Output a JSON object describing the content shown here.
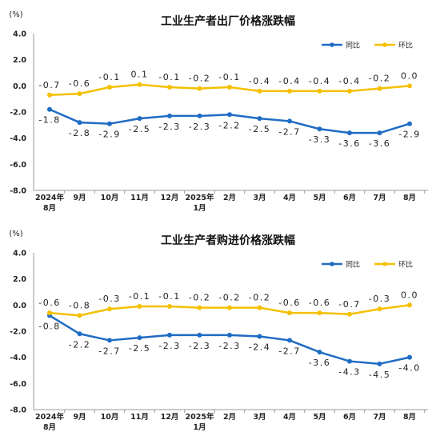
{
  "chart_data": [
    {
      "type": "line",
      "title": "工业生产者出厂价格涨跌幅",
      "unit": "(%)",
      "categories": [
        [
          "2024年",
          "8月"
        ],
        [
          "9月"
        ],
        [
          "10月"
        ],
        [
          "11月"
        ],
        [
          "12月"
        ],
        [
          "2025年",
          "1月"
        ],
        [
          "2月"
        ],
        [
          "3月"
        ],
        [
          "4月"
        ],
        [
          "5月"
        ],
        [
          "6月"
        ],
        [
          "7月"
        ],
        [
          "8月"
        ]
      ],
      "ylim": [
        -8.0,
        4.0
      ],
      "yticks": [
        "4.0",
        "2.0",
        "0.0",
        "-2.0",
        "-4.0",
        "-6.0",
        "-8.0"
      ],
      "legend_position": "top-right",
      "grid": false,
      "series": [
        {
          "name": "同比",
          "color": "#1f6cc4",
          "values": [
            -1.8,
            -2.8,
            -2.9,
            -2.5,
            -2.3,
            -2.3,
            -2.2,
            -2.5,
            -2.7,
            -3.3,
            -3.6,
            -3.6,
            -2.9
          ],
          "labels": [
            "-1.8",
            "-2.8",
            "-2.9",
            "-2.5",
            "-2.3",
            "-2.3",
            "-2.2",
            "-2.5",
            "-2.7",
            "-3.3",
            "-3.6",
            "-3.6",
            "-2.9"
          ]
        },
        {
          "name": "环比",
          "color": "#f5c000",
          "values": [
            -0.7,
            -0.6,
            -0.1,
            0.1,
            -0.1,
            -0.2,
            -0.1,
            -0.4,
            -0.4,
            -0.4,
            -0.4,
            -0.2,
            0.0
          ],
          "labels": [
            "-0.7",
            "-0.6",
            "-0.1",
            "0.1",
            "-0.1",
            "-0.2",
            "-0.1",
            "-0.4",
            "-0.4",
            "-0.4",
            "-0.4",
            "-0.2",
            "0.0"
          ]
        }
      ]
    },
    {
      "type": "line",
      "title": "工业生产者购进价格涨跌幅",
      "unit": "(%)",
      "categories": [
        [
          "2024年",
          "8月"
        ],
        [
          "9月"
        ],
        [
          "10月"
        ],
        [
          "11月"
        ],
        [
          "12月"
        ],
        [
          "2025年",
          "1月"
        ],
        [
          "2月"
        ],
        [
          "3月"
        ],
        [
          "4月"
        ],
        [
          "5月"
        ],
        [
          "6月"
        ],
        [
          "7月"
        ],
        [
          "8月"
        ]
      ],
      "ylim": [
        -8.0,
        4.0
      ],
      "yticks": [
        "4.0",
        "2.0",
        "0.0",
        "-2.0",
        "-4.0",
        "-6.0",
        "-8.0"
      ],
      "legend_position": "top-right",
      "grid": false,
      "series": [
        {
          "name": "同比",
          "color": "#1f6cc4",
          "values": [
            -0.8,
            -2.2,
            -2.7,
            -2.5,
            -2.3,
            -2.3,
            -2.3,
            -2.4,
            -2.7,
            -3.6,
            -4.3,
            -4.5,
            -4.0
          ],
          "labels": [
            "-0.8",
            "-2.2",
            "-2.7",
            "-2.5",
            "-2.3",
            "-2.3",
            "-2.3",
            "-2.4",
            "-2.7",
            "-3.6",
            "-4.3",
            "-4.5",
            "-4.0"
          ]
        },
        {
          "name": "环比",
          "color": "#f5c000",
          "values": [
            -0.6,
            -0.8,
            -0.3,
            -0.1,
            -0.1,
            -0.2,
            -0.2,
            -0.2,
            -0.6,
            -0.6,
            -0.7,
            -0.3,
            0.0
          ],
          "labels": [
            "-0.6",
            "-0.8",
            "-0.3",
            "-0.1",
            "-0.1",
            "-0.2",
            "-0.2",
            "-0.2",
            "-0.6",
            "-0.6",
            "-0.7",
            "-0.3",
            "0.0"
          ]
        }
      ]
    }
  ]
}
